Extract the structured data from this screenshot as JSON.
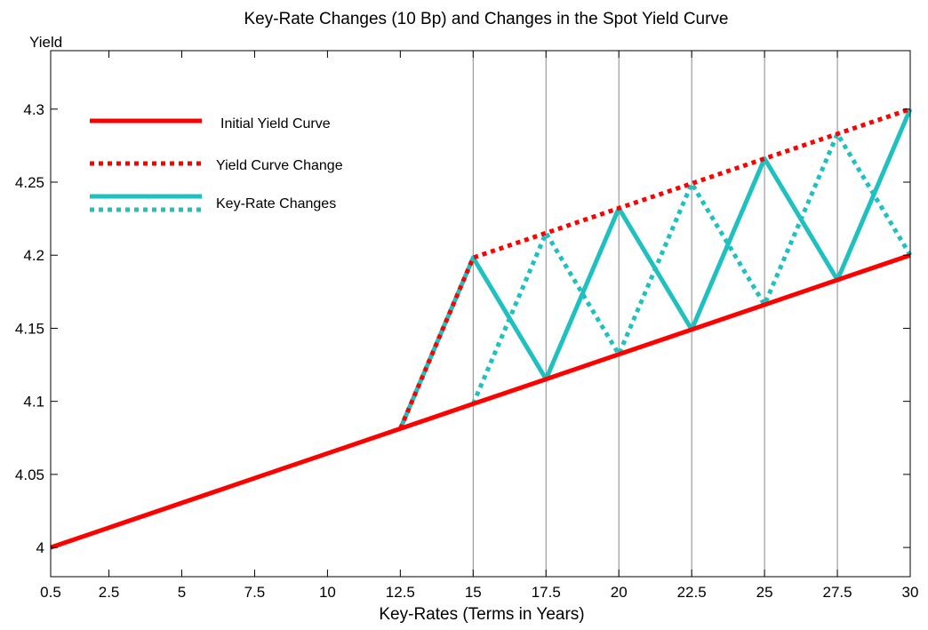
{
  "chart_data": {
    "type": "line",
    "title": "Key-Rate Changes (10 Bp) and Changes in the Spot Yield Curve",
    "xlabel": "Key-Rates (Terms in Years)",
    "ylabel": "Yield",
    "xlim": [
      0.5,
      30
    ],
    "ylim": [
      3.98,
      4.34
    ],
    "x_ticks": [
      0.5,
      2.5,
      5,
      7.5,
      10,
      12.5,
      15,
      17.5,
      20,
      22.5,
      25,
      27.5,
      30
    ],
    "x_tick_labels": [
      "0.5",
      "2.5",
      "5",
      "7.5",
      "10",
      "12.5",
      "15",
      "17.5",
      "20",
      "22.5",
      "25",
      "27.5",
      "30"
    ],
    "y_ticks": [
      4,
      4.05,
      4.1,
      4.15,
      4.2,
      4.25,
      4.3
    ],
    "y_tick_labels": [
      "4",
      "4.05",
      "4.1",
      "4.15",
      "4.2",
      "4.25",
      "4.3"
    ],
    "vertical_gridlines": [
      15,
      17.5,
      20,
      22.5,
      25,
      27.5,
      30
    ],
    "grid": false,
    "legend_position": "top-left",
    "colors": {
      "red": "#ff0000",
      "teal": "#1fc0c0"
    },
    "series": [
      {
        "name": "Initial Yield Curve",
        "style": "solid",
        "color": "#ff0000",
        "x": [
          0.5,
          12.5,
          15,
          17.5,
          20,
          22.5,
          25,
          27.5,
          30
        ],
        "y": [
          4.0,
          4.0813,
          4.0983,
          4.1152,
          4.1322,
          4.1491,
          4.1661,
          4.1831,
          4.2
        ]
      },
      {
        "name": "Yield Curve Change",
        "style": "dotted",
        "color": "#ff0000",
        "x": [
          12.5,
          15,
          17.5,
          20,
          22.5,
          25,
          27.5,
          30
        ],
        "y": [
          4.0813,
          4.1983,
          4.2152,
          4.2322,
          4.2491,
          4.2661,
          4.2831,
          4.3
        ]
      },
      {
        "name": "Key-Rate Changes",
        "style": "solid",
        "color": "#1fc0c0",
        "x": [
          12.5,
          15,
          17.5,
          20,
          22.5,
          25,
          27.5,
          30
        ],
        "y": [
          4.0813,
          4.1983,
          4.1152,
          4.2322,
          4.1491,
          4.2661,
          4.1831,
          4.3
        ]
      },
      {
        "name": "",
        "style": "dotted",
        "color": "#1fc0c0",
        "x": [
          15,
          17.5,
          20,
          22.5,
          25,
          27.5,
          30
        ],
        "y": [
          4.0983,
          4.2152,
          4.1322,
          4.2491,
          4.1661,
          4.2831,
          4.2
        ]
      }
    ]
  }
}
